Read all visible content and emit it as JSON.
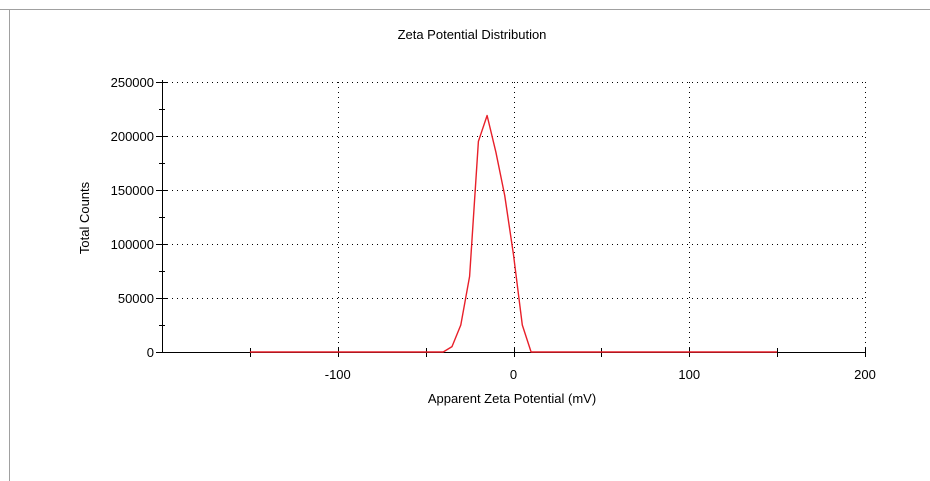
{
  "chart_data": {
    "type": "line",
    "title": "Zeta Potential Distribution",
    "xlabel": "Apparent Zeta Potential (mV)",
    "ylabel": "Total Counts",
    "xlim": [
      -200,
      200
    ],
    "ylim": [
      0,
      250000
    ],
    "x_ticks": [
      -100,
      0,
      100,
      200
    ],
    "x_tick_labels": [
      "-100",
      "0",
      "100",
      "200"
    ],
    "y_ticks": [
      0,
      50000,
      100000,
      150000,
      200000,
      250000
    ],
    "y_tick_labels": [
      "0",
      "50000",
      "100000",
      "150000",
      "200000",
      "250000"
    ],
    "grid": true,
    "legend": "none",
    "series": [
      {
        "color": "#e8202a",
        "x": [
          -150,
          -120,
          -90,
          -60,
          -40,
          -35,
          -30,
          -25,
          -20,
          -15,
          -10,
          -5,
          0,
          5,
          10,
          12,
          20,
          60,
          100,
          150
        ],
        "y": [
          0,
          0,
          0,
          0,
          0,
          5000,
          25000,
          70000,
          195000,
          219000,
          185000,
          145000,
          90000,
          25000,
          0,
          0,
          0,
          0,
          0,
          0
        ]
      }
    ]
  },
  "frame": {
    "border_color": "#a0a0a0",
    "grid_color": "#000000"
  }
}
